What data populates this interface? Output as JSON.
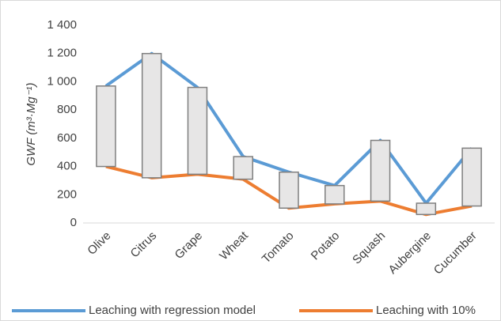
{
  "chart_data": {
    "type": "line",
    "y_label": "GWF (m³·Mg⁻¹)",
    "categories": [
      "Olive",
      "Citrus",
      "Grape",
      "Wheat",
      "Tomato",
      "Potato",
      "Squash",
      "Aubergine",
      "Cucumber"
    ],
    "series": [
      {
        "name": "Leaching with regression model",
        "color": "#5b9bd5",
        "values": [
          970,
          1200,
          960,
          470,
          360,
          265,
          585,
          140,
          530
        ]
      },
      {
        "name": "Leaching with 10%",
        "color": "#ed7d31",
        "values": [
          400,
          320,
          345,
          310,
          105,
          135,
          155,
          60,
          120
        ]
      }
    ],
    "up_down_bars": true,
    "ylim": [
      0,
      1400
    ],
    "yticks": [
      0,
      200,
      400,
      600,
      800,
      {
        "value": 1000,
        "label": "1 000"
      },
      {
        "value": 1200,
        "label": "1 200"
      },
      {
        "value": 1400,
        "label": "1 400"
      }
    ],
    "grid": false,
    "legend": "bottom"
  }
}
